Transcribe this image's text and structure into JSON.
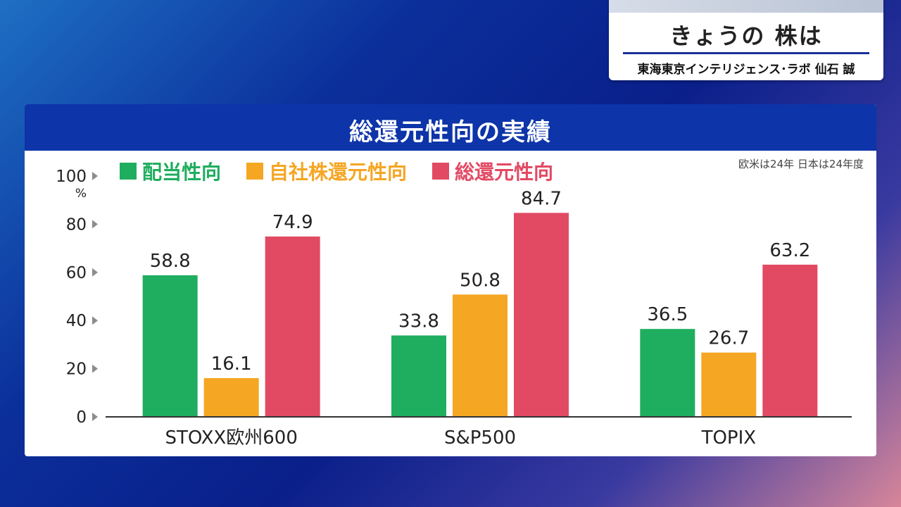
{
  "corner_caption": {
    "title": "きょうの 株は",
    "subtitle": "東海東京インテリジェンス･ラボ 仙石 誠"
  },
  "panel": {
    "title": "総還元性向の実績",
    "note": "欧米は24年 日本は24年度"
  },
  "chart_data": {
    "type": "bar",
    "title": "総還元性向の実績",
    "categories": [
      "STOXX欧州600",
      "S&P500",
      "TOPIX"
    ],
    "series": [
      {
        "name": "配当性向",
        "color": "#1fae5f",
        "values": [
          58.8,
          33.8,
          36.5
        ]
      },
      {
        "name": "自社株還元性向",
        "color": "#f5a623",
        "values": [
          16.1,
          50.8,
          26.7
        ]
      },
      {
        "name": "総還元性向",
        "color": "#e24a63",
        "values": [
          74.9,
          84.7,
          63.2
        ]
      }
    ],
    "ylabel": "%",
    "ylim": [
      0,
      100
    ],
    "yticks": [
      0,
      20,
      40,
      60,
      80,
      100
    ],
    "legend_position": "top-left",
    "grid": false
  }
}
